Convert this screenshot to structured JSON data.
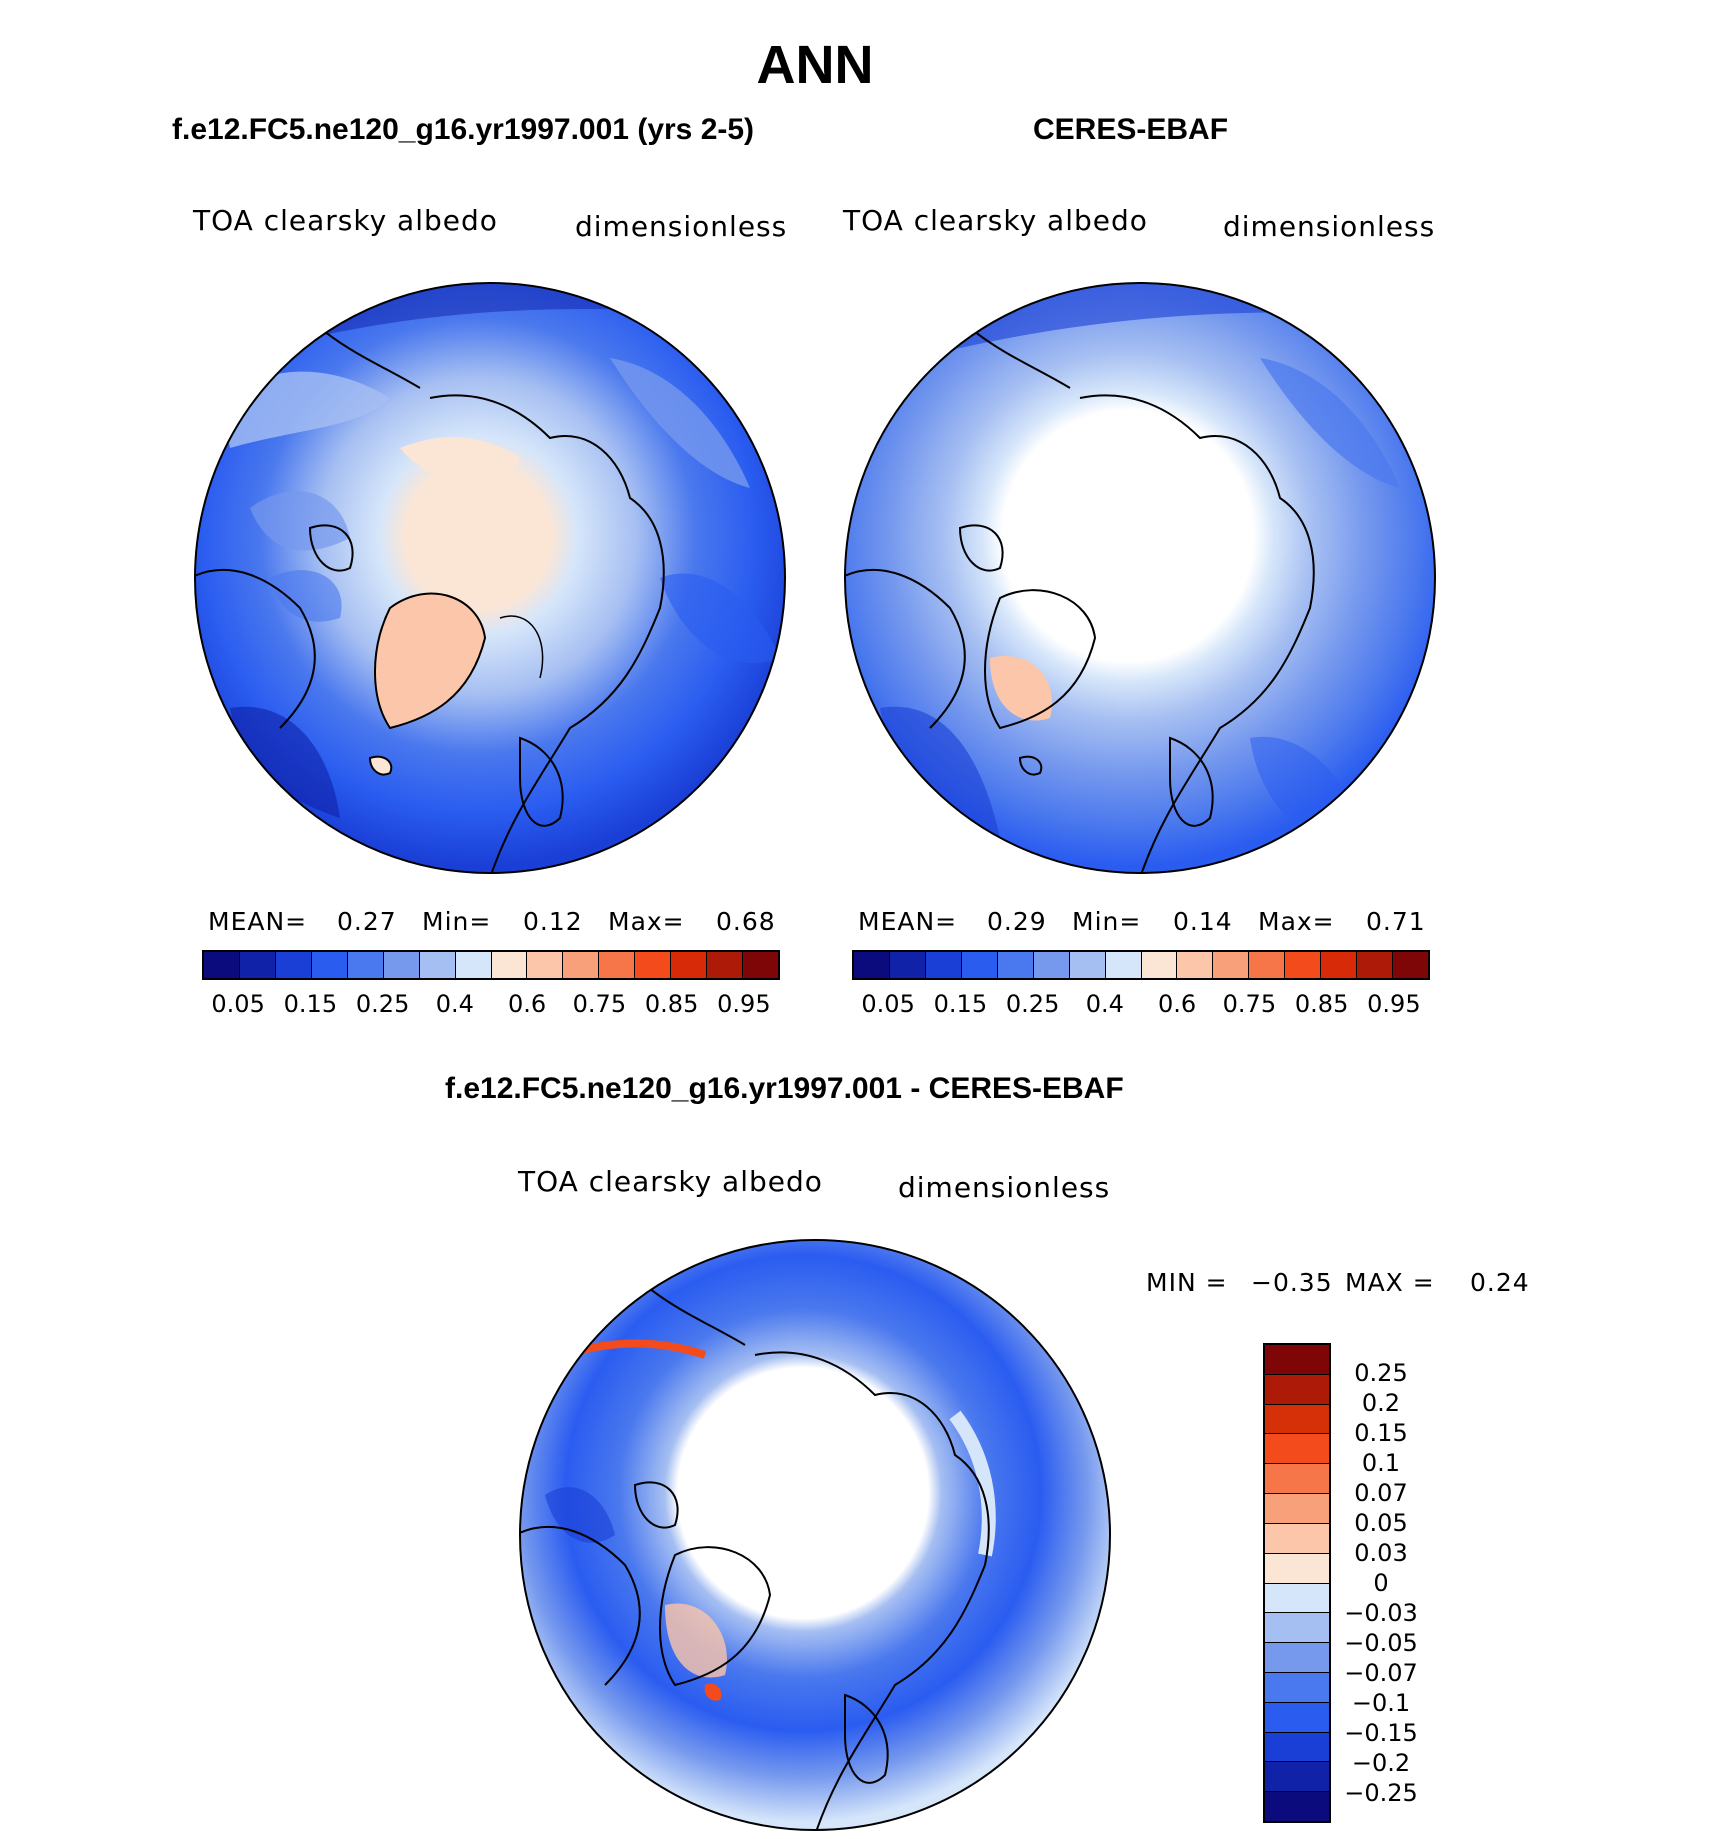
{
  "title": "ANN",
  "panels": {
    "model": {
      "title": "f.e12.FC5.ne120_g16.yr1997.001 (yrs 2-5)",
      "variable": "TOA clearsky albedo",
      "units": "dimensionless",
      "stats": {
        "mean_label": "MEAN=",
        "mean": "0.27",
        "min_label": "Min=",
        "min": "0.12",
        "max_label": "Max=",
        "max": "0.68"
      }
    },
    "obs": {
      "title": "CERES-EBAF",
      "variable": "TOA clearsky albedo",
      "units": "dimensionless",
      "stats": {
        "mean_label": "MEAN=",
        "mean": "0.29",
        "min_label": "Min=",
        "min": "0.14",
        "max_label": "Max=",
        "max": "0.71"
      }
    },
    "diff": {
      "title": "f.e12.FC5.ne120_g16.yr1997.001 - CERES-EBAF",
      "variable": "TOA clearsky albedo",
      "units": "dimensionless",
      "stats": {
        "min_label": "MIN =",
        "min": "−0.35",
        "max_label": "MAX =",
        "max": "0.24"
      }
    }
  },
  "colorbar_abs": {
    "colors": [
      "#0b0b7e",
      "#0f22a8",
      "#1a3fd6",
      "#2a5cf0",
      "#4a78ee",
      "#7699ee",
      "#a6bff2",
      "#d6e6fa",
      "#fbe6d6",
      "#fbc6aa",
      "#f8a07a",
      "#f6764a",
      "#f44b1c",
      "#d62a08",
      "#ae1a08",
      "#7e0606"
    ],
    "ticks": [
      "0.05",
      "0.15",
      "0.25",
      "0.4",
      "0.6",
      "0.75",
      "0.85",
      "0.95"
    ]
  },
  "colorbar_diff": {
    "colors": [
      "#7e0606",
      "#ae1a08",
      "#d63008",
      "#f44b1c",
      "#f6764a",
      "#f8a07a",
      "#fbc6aa",
      "#fbe6d6",
      "#d6e6fa",
      "#a6bff2",
      "#7699ee",
      "#4a78ee",
      "#2a5cf0",
      "#1a3fd6",
      "#0f22a8",
      "#0b0b7e"
    ],
    "ticks": [
      "0.25",
      "0.2",
      "0.15",
      "0.1",
      "0.07",
      "0.05",
      "0.03",
      "0",
      "−0.03",
      "−0.05",
      "−0.07",
      "−0.1",
      "−0.15",
      "−0.2",
      "−0.25"
    ]
  }
}
